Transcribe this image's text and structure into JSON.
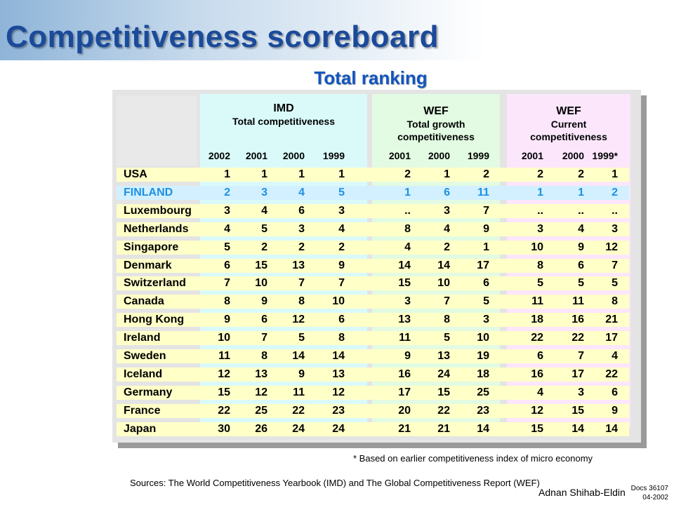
{
  "title": "Competitiveness scoreboard",
  "subtitle": "Total ranking",
  "groups": {
    "imd": {
      "name": "IMD",
      "sub1": "Total competitiveness",
      "years": [
        "2002",
        "2001",
        "2000",
        "1999"
      ]
    },
    "wef_growth": {
      "name": "WEF",
      "sub1": "Total growth",
      "sub2": "competitiveness",
      "years": [
        "2001",
        "2000",
        "1999"
      ]
    },
    "wef_current": {
      "name": "WEF",
      "sub1": "Current",
      "sub2": "competitiveness",
      "years": [
        "2001",
        "2000",
        "1999*"
      ]
    }
  },
  "rows": [
    {
      "country": "USA",
      "values": [
        "1",
        "1",
        "1",
        "1",
        "2",
        "1",
        "2",
        "2",
        "2",
        "1"
      ],
      "highlight": false
    },
    {
      "country": "FINLAND",
      "values": [
        "2",
        "3",
        "4",
        "5",
        "1",
        "6",
        "11",
        "1",
        "1",
        "2"
      ],
      "highlight": true
    },
    {
      "country": "Luxembourg",
      "values": [
        "3",
        "4",
        "6",
        "3",
        "..",
        "3",
        "7",
        "..",
        "..",
        ".."
      ],
      "highlight": false
    },
    {
      "country": "Netherlands",
      "values": [
        "4",
        "5",
        "3",
        "4",
        "8",
        "4",
        "9",
        "3",
        "4",
        "3"
      ],
      "highlight": false
    },
    {
      "country": "Singapore",
      "values": [
        "5",
        "2",
        "2",
        "2",
        "4",
        "2",
        "1",
        "10",
        "9",
        "12"
      ],
      "highlight": false
    },
    {
      "country": "Denmark",
      "values": [
        "6",
        "15",
        "13",
        "9",
        "14",
        "14",
        "17",
        "8",
        "6",
        "7"
      ],
      "highlight": false
    },
    {
      "country": "Switzerland",
      "values": [
        "7",
        "10",
        "7",
        "7",
        "15",
        "10",
        "6",
        "5",
        "5",
        "5"
      ],
      "highlight": false
    },
    {
      "country": "Canada",
      "values": [
        "8",
        "9",
        "8",
        "10",
        "3",
        "7",
        "5",
        "11",
        "11",
        "8"
      ],
      "highlight": false
    },
    {
      "country": "Hong Kong",
      "values": [
        "9",
        "6",
        "12",
        "6",
        "13",
        "8",
        "3",
        "18",
        "16",
        "21"
      ],
      "highlight": false
    },
    {
      "country": "Ireland",
      "values": [
        "10",
        "7",
        "5",
        "8",
        "11",
        "5",
        "10",
        "22",
        "22",
        "17"
      ],
      "highlight": false
    },
    {
      "country": "Sweden",
      "values": [
        "11",
        "8",
        "14",
        "14",
        "9",
        "13",
        "19",
        "6",
        "7",
        "4"
      ],
      "highlight": false
    },
    {
      "country": "Iceland",
      "values": [
        "12",
        "13",
        "9",
        "13",
        "16",
        "24",
        "18",
        "16",
        "17",
        "22"
      ],
      "highlight": false
    },
    {
      "country": "Germany",
      "values": [
        "15",
        "12",
        "11",
        "12",
        "17",
        "15",
        "25",
        "4",
        "3",
        "6"
      ],
      "highlight": false
    },
    {
      "country": "France",
      "values": [
        "22",
        "25",
        "22",
        "23",
        "20",
        "22",
        "23",
        "12",
        "15",
        "9"
      ],
      "highlight": false
    },
    {
      "country": "Japan",
      "values": [
        "30",
        "26",
        "24",
        "24",
        "21",
        "21",
        "14",
        "15",
        "14",
        "14"
      ],
      "highlight": false
    }
  ],
  "footnote": "* Based on earlier competitiveness index of micro economy",
  "sources": "Sources: The World Competitiveness Yearbook (IMD) and The Global Competitiveness Report (WEF)",
  "author": "Adnan Shihab-Eldin",
  "docs": {
    "line1": "Docs 36107",
    "line2": "04-2002"
  },
  "colors": {
    "title": "#1b4a9a",
    "subtitle": "#1155c0",
    "highlight_text": "#1e90e0",
    "band_yellow": "#ffffc8",
    "band_blue": "#d2f0ff"
  }
}
